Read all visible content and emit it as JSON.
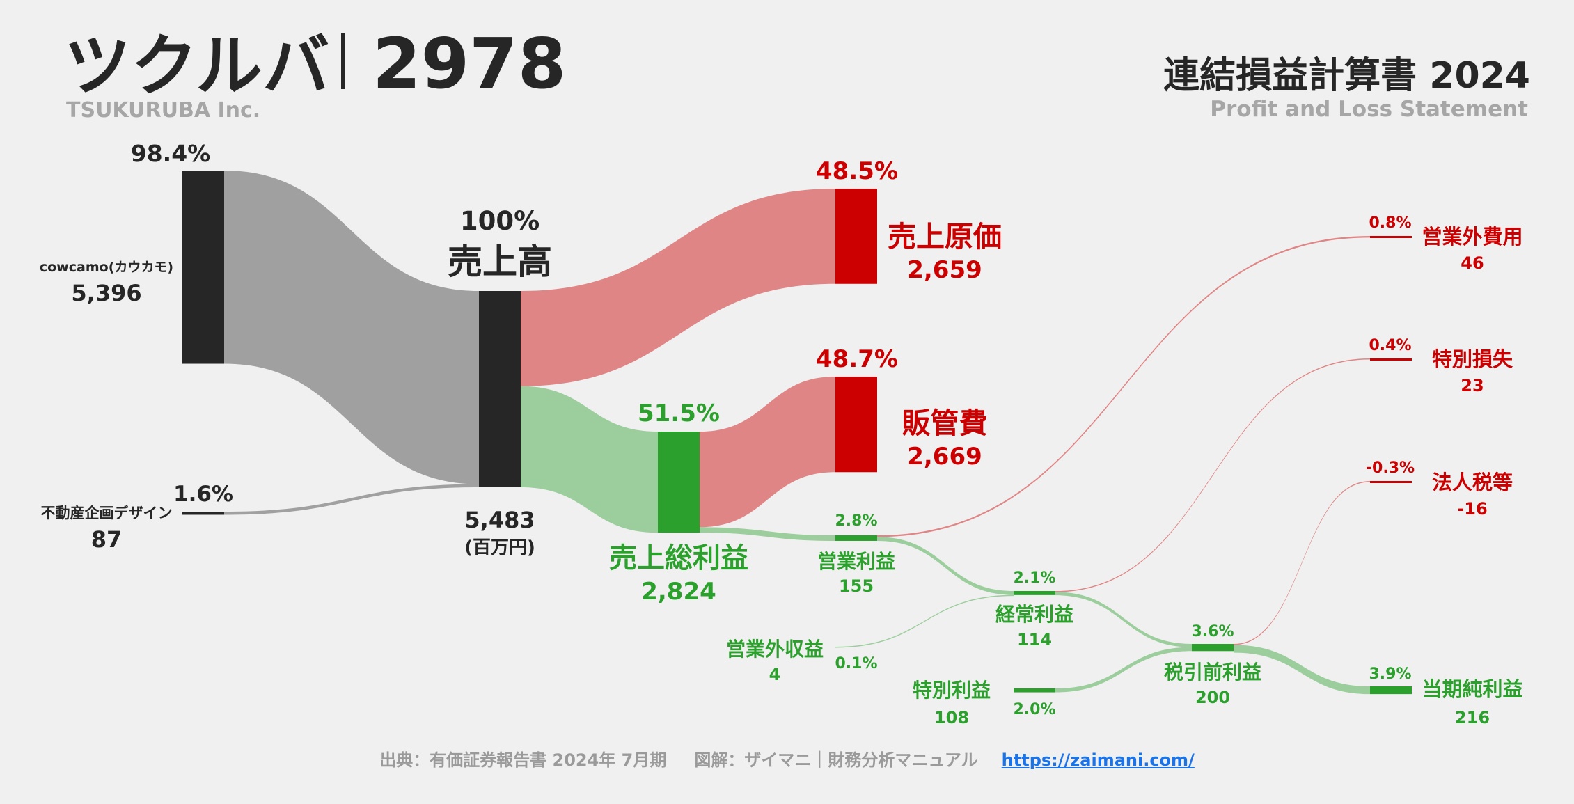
{
  "header": {
    "company": "ツクルバ",
    "code": "2978",
    "company_en": "TSUKURUBA Inc.",
    "statement_title": "連結損益計算書 2024",
    "statement_en": "Profit and Loss Statement"
  },
  "footer": {
    "source": "出典：有価証券報告書 2024年 7月期",
    "credit": "図解：ザイマニ｜財務分析マニュアル",
    "url": "https://zaimani.com/"
  },
  "colors": {
    "dark": "#262626",
    "gray_flow": "#a0a0a0",
    "red": "#cc0000",
    "red_flow": "#e08585",
    "green": "#2ca02c",
    "green_flow": "#9ccd9c",
    "text_dark": "#262626",
    "text_gray": "#a6a6a6",
    "link": "#1a73e8"
  },
  "chart_data": {
    "type": "sankey",
    "unit": "(百万円)",
    "nodes": [
      {
        "id": "cowcamo",
        "label": "cowcamo(カウカモ)",
        "value_label": "5,396",
        "pct": "98.4%",
        "value": 5396
      },
      {
        "id": "realestate",
        "label": "不動産企画デザイン",
        "value_label": "87",
        "pct": "1.6%",
        "value": 87
      },
      {
        "id": "revenue",
        "label": "売上高",
        "value_label": "5,483",
        "pct": "100%",
        "value": 5483
      },
      {
        "id": "cogs",
        "label": "売上原価",
        "value_label": "2,659",
        "pct": "48.5%",
        "value": 2659
      },
      {
        "id": "gross",
        "label": "売上総利益",
        "value_label": "2,824",
        "pct": "51.5%",
        "value": 2824
      },
      {
        "id": "sga",
        "label": "販管費",
        "value_label": "2,669",
        "pct": "48.7%",
        "value": 2669
      },
      {
        "id": "op",
        "label": "営業利益",
        "value_label": "155",
        "pct": "2.8%",
        "value": 155
      },
      {
        "id": "nonop_inc",
        "label": "営業外収益",
        "value_label": "4",
        "pct": "0.1%",
        "value": 4
      },
      {
        "id": "nonop_exp",
        "label": "営業外費用",
        "value_label": "46",
        "pct": "0.8%",
        "value": 46
      },
      {
        "id": "ordinary",
        "label": "経常利益",
        "value_label": "114",
        "pct": "2.1%",
        "value": 114
      },
      {
        "id": "ext_gain",
        "label": "特別利益",
        "value_label": "108",
        "pct": "2.0%",
        "value": 108
      },
      {
        "id": "ext_loss",
        "label": "特別損失",
        "value_label": "23",
        "pct": "0.4%",
        "value": 23
      },
      {
        "id": "pretax",
        "label": "税引前利益",
        "value_label": "200",
        "pct": "3.6%",
        "value": 200
      },
      {
        "id": "tax",
        "label": "法人税等",
        "value_label": "-16",
        "pct": "-0.3%",
        "value": -16
      },
      {
        "id": "net",
        "label": "当期純利益",
        "value_label": "216",
        "pct": "3.9%",
        "value": 216
      }
    ],
    "links": [
      {
        "source": "cowcamo",
        "target": "revenue",
        "value": 5396
      },
      {
        "source": "realestate",
        "target": "revenue",
        "value": 87
      },
      {
        "source": "revenue",
        "target": "cogs",
        "value": 2659
      },
      {
        "source": "revenue",
        "target": "gross",
        "value": 2824
      },
      {
        "source": "gross",
        "target": "sga",
        "value": 2669
      },
      {
        "source": "gross",
        "target": "op",
        "value": 155
      },
      {
        "source": "op",
        "target": "nonop_exp",
        "value": 46
      },
      {
        "source": "op",
        "target": "ordinary",
        "value": 109
      },
      {
        "source": "nonop_inc",
        "target": "ordinary",
        "value": 4
      },
      {
        "source": "ordinary",
        "target": "ext_loss",
        "value": 23
      },
      {
        "source": "ordinary",
        "target": "pretax",
        "value": 91
      },
      {
        "source": "ext_gain",
        "target": "pretax",
        "value": 108
      },
      {
        "source": "pretax",
        "target": "tax",
        "value": 16
      },
      {
        "source": "pretax",
        "target": "net",
        "value": 216
      }
    ]
  }
}
